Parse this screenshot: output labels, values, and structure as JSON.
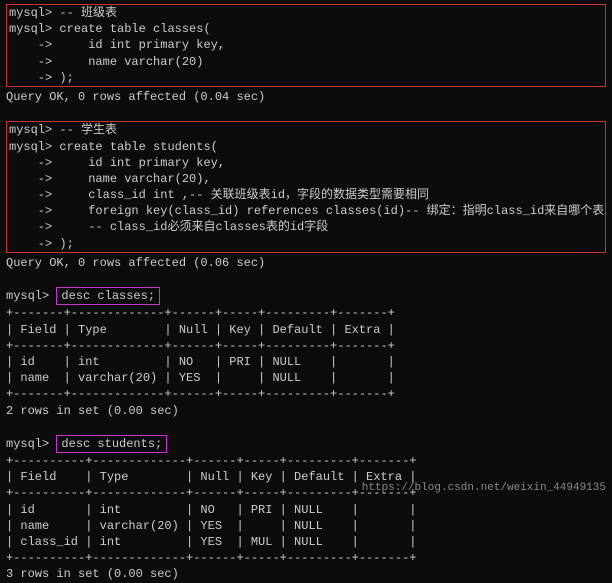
{
  "block1": {
    "l1_prompt": "mysql>",
    "l1_text": " -- 班级表",
    "l2_prompt": "mysql>",
    "l2_text": " create table classes(",
    "l3_prompt": "    ->",
    "l3_text": "     id int primary key,",
    "l4_prompt": "    ->",
    "l4_text": "     name varchar(20)",
    "l5_prompt": "    ->",
    "l5_text": " );",
    "result": "Query OK, 0 rows affected (0.04 sec)"
  },
  "block2": {
    "l1_prompt": "mysql>",
    "l1_text": " -- 学生表",
    "l2_prompt": "mysql>",
    "l2_text": " create table students(",
    "l3_prompt": "    ->",
    "l3_text": "     id int primary key,",
    "l4_prompt": "    ->",
    "l4_text": "     name varchar(20),",
    "l5_prompt": "    ->",
    "l5_text": "     class_id int ,-- 关联班级表id，字段的数据类型需要相同",
    "l6_prompt": "    ->",
    "l6_text": "     foreign key(class_id) references classes(id)-- 绑定：指明class_id来自哪个表",
    "l7_prompt": "    ->",
    "l7_text": "     -- class_id必须来自classes表的id字段",
    "l8_prompt": "    ->",
    "l8_text": " );",
    "result": "Query OK, 0 rows affected (0.06 sec)"
  },
  "desc1": {
    "prompt": "mysql> ",
    "cmd": "desc classes;",
    "border": "+-------+-------------+------+-----+---------+-------+",
    "header": "| Field | Type        | Null | Key | Default | Extra |",
    "r1": "| id    | int         | NO   | PRI | NULL    |       |",
    "r2": "| name  | varchar(20) | YES  |     | NULL    |       |",
    "result": "2 rows in set (0.00 sec)"
  },
  "desc2": {
    "prompt": "mysql> ",
    "cmd": "desc students;",
    "border": "+----------+-------------+------+-----+---------+-------+",
    "header": "| Field    | Type        | Null | Key | Default | Extra |",
    "r1": "| id       | int         | NO   | PRI | NULL    |       |",
    "r2": "| name     | varchar(20) | YES  |     | NULL    |       |",
    "r3": "| class_id | int         | YES  | MUL | NULL    |       |",
    "result": "3 rows in set (0.00 sec)"
  },
  "watermark": "https://blog.csdn.net/weixin_44949135",
  "colors": {
    "bg": "#0c0c0c",
    "fg": "#cccccc",
    "box_red": "#cc3333",
    "box_magenta": "#cc33cc"
  }
}
